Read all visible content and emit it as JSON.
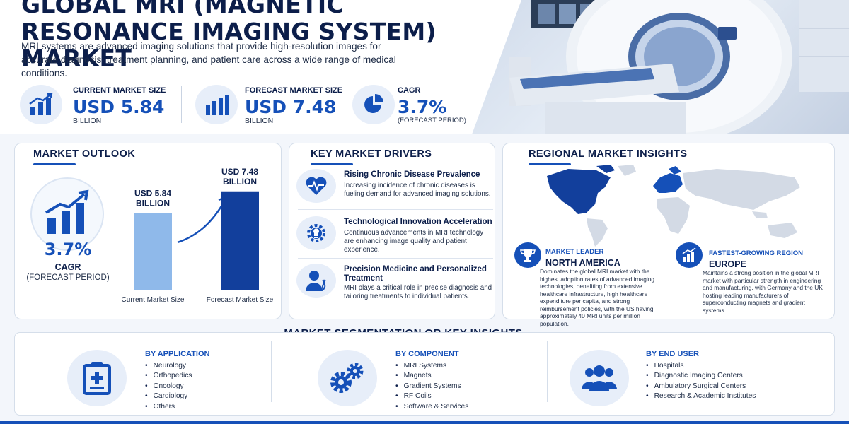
{
  "header": {
    "title": "GLOBAL MRI (MAGNETIC RESONANCE IMAGING SYSTEM) MARKET",
    "intro": "MRI systems are advanced imaging solutions that provide high-resolution images for accurate diagnosis, treatment planning, and patient care across a wide range of medical conditions.",
    "kpis": [
      {
        "label": "CURRENT MARKET SIZE",
        "value": "USD 5.84",
        "sub": "BILLION",
        "icon": "bar-growth-icon"
      },
      {
        "label": "FORECAST MARKET SIZE",
        "value": "USD 7.48",
        "sub": "BILLION",
        "icon": "bar-chart-icon"
      },
      {
        "label": "CAGR",
        "value": "3.7%",
        "sub": "(FORECAST PERIOD)",
        "icon": "pie-chart-icon"
      }
    ]
  },
  "outlook": {
    "title": "MARKET OUTLOOK",
    "cagr_value": "3.7%",
    "cagr_label": "CAGR",
    "cagr_sub": "(FORECAST PERIOD)"
  },
  "chart_data": {
    "type": "bar",
    "categories": [
      "Current Market Size",
      "Forecast Market Size"
    ],
    "values": [
      5.84,
      7.48
    ],
    "data_labels": [
      "USD 5.84 BILLION",
      "USD 7.48 BILLION"
    ],
    "colors": [
      "#8fb9ea",
      "#123f9c"
    ],
    "title": "",
    "xlabel": "",
    "ylabel": "",
    "ylim": [
      0,
      8
    ]
  },
  "drivers": {
    "title": "KEY MARKET DRIVERS",
    "items": [
      {
        "title": "Rising Chronic Disease Prevalence",
        "text": "Increasing incidence of chronic diseases is fueling demand for advanced imaging solutions.",
        "icon": "heart-pulse-icon"
      },
      {
        "title": "Technological Innovation Acceleration",
        "text": "Continuous advancements in MRI technology are enhancing image quality and patient experience.",
        "icon": "innovation-gear-icon"
      },
      {
        "title": "Precision Medicine and Personalized Treatment",
        "text": "MRI plays a critical role in precise diagnosis and tailoring treatments to individual patients.",
        "icon": "patient-dna-icon"
      }
    ]
  },
  "regional": {
    "title": "REGIONAL MARKET INSIGHTS",
    "leader": {
      "tag": "MARKET LEADER",
      "name": "NORTH AMERICA",
      "text": "Dominates the global MRI market with the highest adoption rates of advanced imaging technologies, benefiting from extensive healthcare infrastructure, high healthcare expenditure per capita, and strong reimbursement policies, with the US having approximately 40 MRI units per million population."
    },
    "fastest": {
      "tag": "FASTEST-GROWING REGION",
      "name": "EUROPE",
      "text": "Maintains a strong position in the global MRI market with particular strength in engineering and manufacturing, with Germany and the UK hosting leading manufacturers of superconducting magnets and gradient systems."
    },
    "colors": {
      "highlight": "#123f9c",
      "land": "#d3dae5"
    }
  },
  "segmentation": {
    "title": "MARKET SEGMENTATION OR KEY INSIGHTS",
    "columns": [
      {
        "heading": "BY APPLICATION",
        "icon": "clipboard-medical-icon",
        "items": [
          "Neurology",
          "Orthopedics",
          "Oncology",
          "Cardiology",
          "Others"
        ]
      },
      {
        "heading": "BY COMPONENT",
        "icon": "gears-icon",
        "items": [
          "MRI Systems",
          "Magnets",
          "Gradient Systems",
          "RF Coils",
          "Software & Services"
        ]
      },
      {
        "heading": "BY END USER",
        "icon": "user-group-icon",
        "items": [
          "Hospitals",
          "Diagnostic Imaging Centers",
          "Ambulatory Surgical Centers",
          "Research & Academic Institutes"
        ]
      }
    ]
  }
}
